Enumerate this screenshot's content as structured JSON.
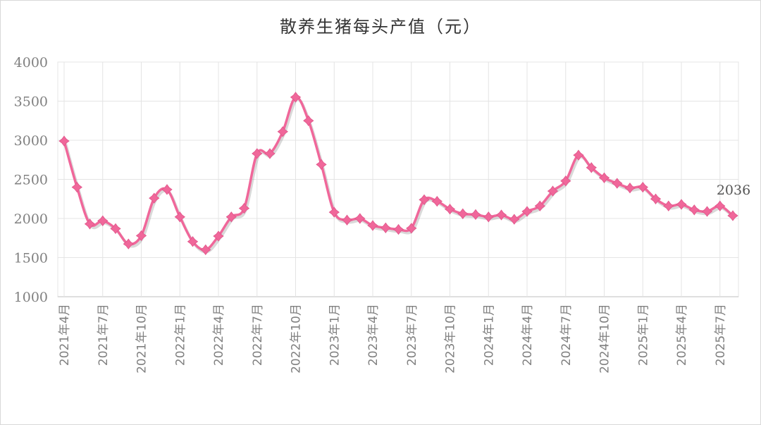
{
  "chart_data": {
    "type": "line",
    "title": "散养生猪每头产值（元）",
    "xlabel": "",
    "ylabel": "",
    "ylim": [
      1000,
      4000
    ],
    "yticks": [
      1000,
      1500,
      2000,
      2500,
      3000,
      3500,
      4000
    ],
    "grid": true,
    "legend": "none",
    "colors": {
      "line": "#f0679a",
      "marker": "#f0679a",
      "grid": "#e4e4e4",
      "axis": "#bfbfbf"
    },
    "x": [
      "2021年4月",
      "2021年5月",
      "2021年6月",
      "2021年7月",
      "2021年8月",
      "2021年9月",
      "2021年10月",
      "2021年11月",
      "2021年12月",
      "2022年1月",
      "2022年2月",
      "2022年3月",
      "2022年4月",
      "2022年5月",
      "2022年6月",
      "2022年7月",
      "2022年8月",
      "2022年9月",
      "2022年10月",
      "2022年11月",
      "2022年12月",
      "2023年1月",
      "2023年2月",
      "2023年3月",
      "2023年4月",
      "2023年5月",
      "2023年6月",
      "2023年7月",
      "2023年8月",
      "2023年9月",
      "2023年10月",
      "2023年11月",
      "2023年12月",
      "2024年1月",
      "2024年2月",
      "2024年3月",
      "2024年4月",
      "2024年5月",
      "2024年6月",
      "2024年7月",
      "2024年8月",
      "2024年9月",
      "2024年10月",
      "2024年11月",
      "2024年12月",
      "2025年1月",
      "2025年2月",
      "2025年3月",
      "2025年4月",
      "2025年5月",
      "2025年6月",
      "2025年7月",
      "2025年8月"
    ],
    "xtick_labels": [
      "2021年4月",
      "2021年7月",
      "2021年10月",
      "2022年1月",
      "2022年4月",
      "2022年7月",
      "2022年10月",
      "2023年1月",
      "2023年4月",
      "2023年7月",
      "2023年10月",
      "2024年1月",
      "2024年4月",
      "2024年7月",
      "2024年10月",
      "2025年1月",
      "2025年4月",
      "2025年7月"
    ],
    "series": [
      {
        "values": [
          2990,
          2400,
          1930,
          1970,
          1870,
          1675,
          1780,
          2260,
          2370,
          2020,
          1705,
          1600,
          1775,
          2020,
          2130,
          2830,
          2830,
          3110,
          3550,
          3250,
          2690,
          2080,
          1980,
          2000,
          1910,
          1880,
          1860,
          1875,
          2240,
          2220,
          2120,
          2060,
          2050,
          2020,
          2045,
          1990,
          2090,
          2160,
          2350,
          2480,
          2810,
          2650,
          2520,
          2450,
          2390,
          2400,
          2250,
          2160,
          2180,
          2110,
          2090,
          2160,
          2036
        ]
      }
    ],
    "annotations": [
      {
        "index": 52,
        "text": "2036"
      }
    ]
  }
}
